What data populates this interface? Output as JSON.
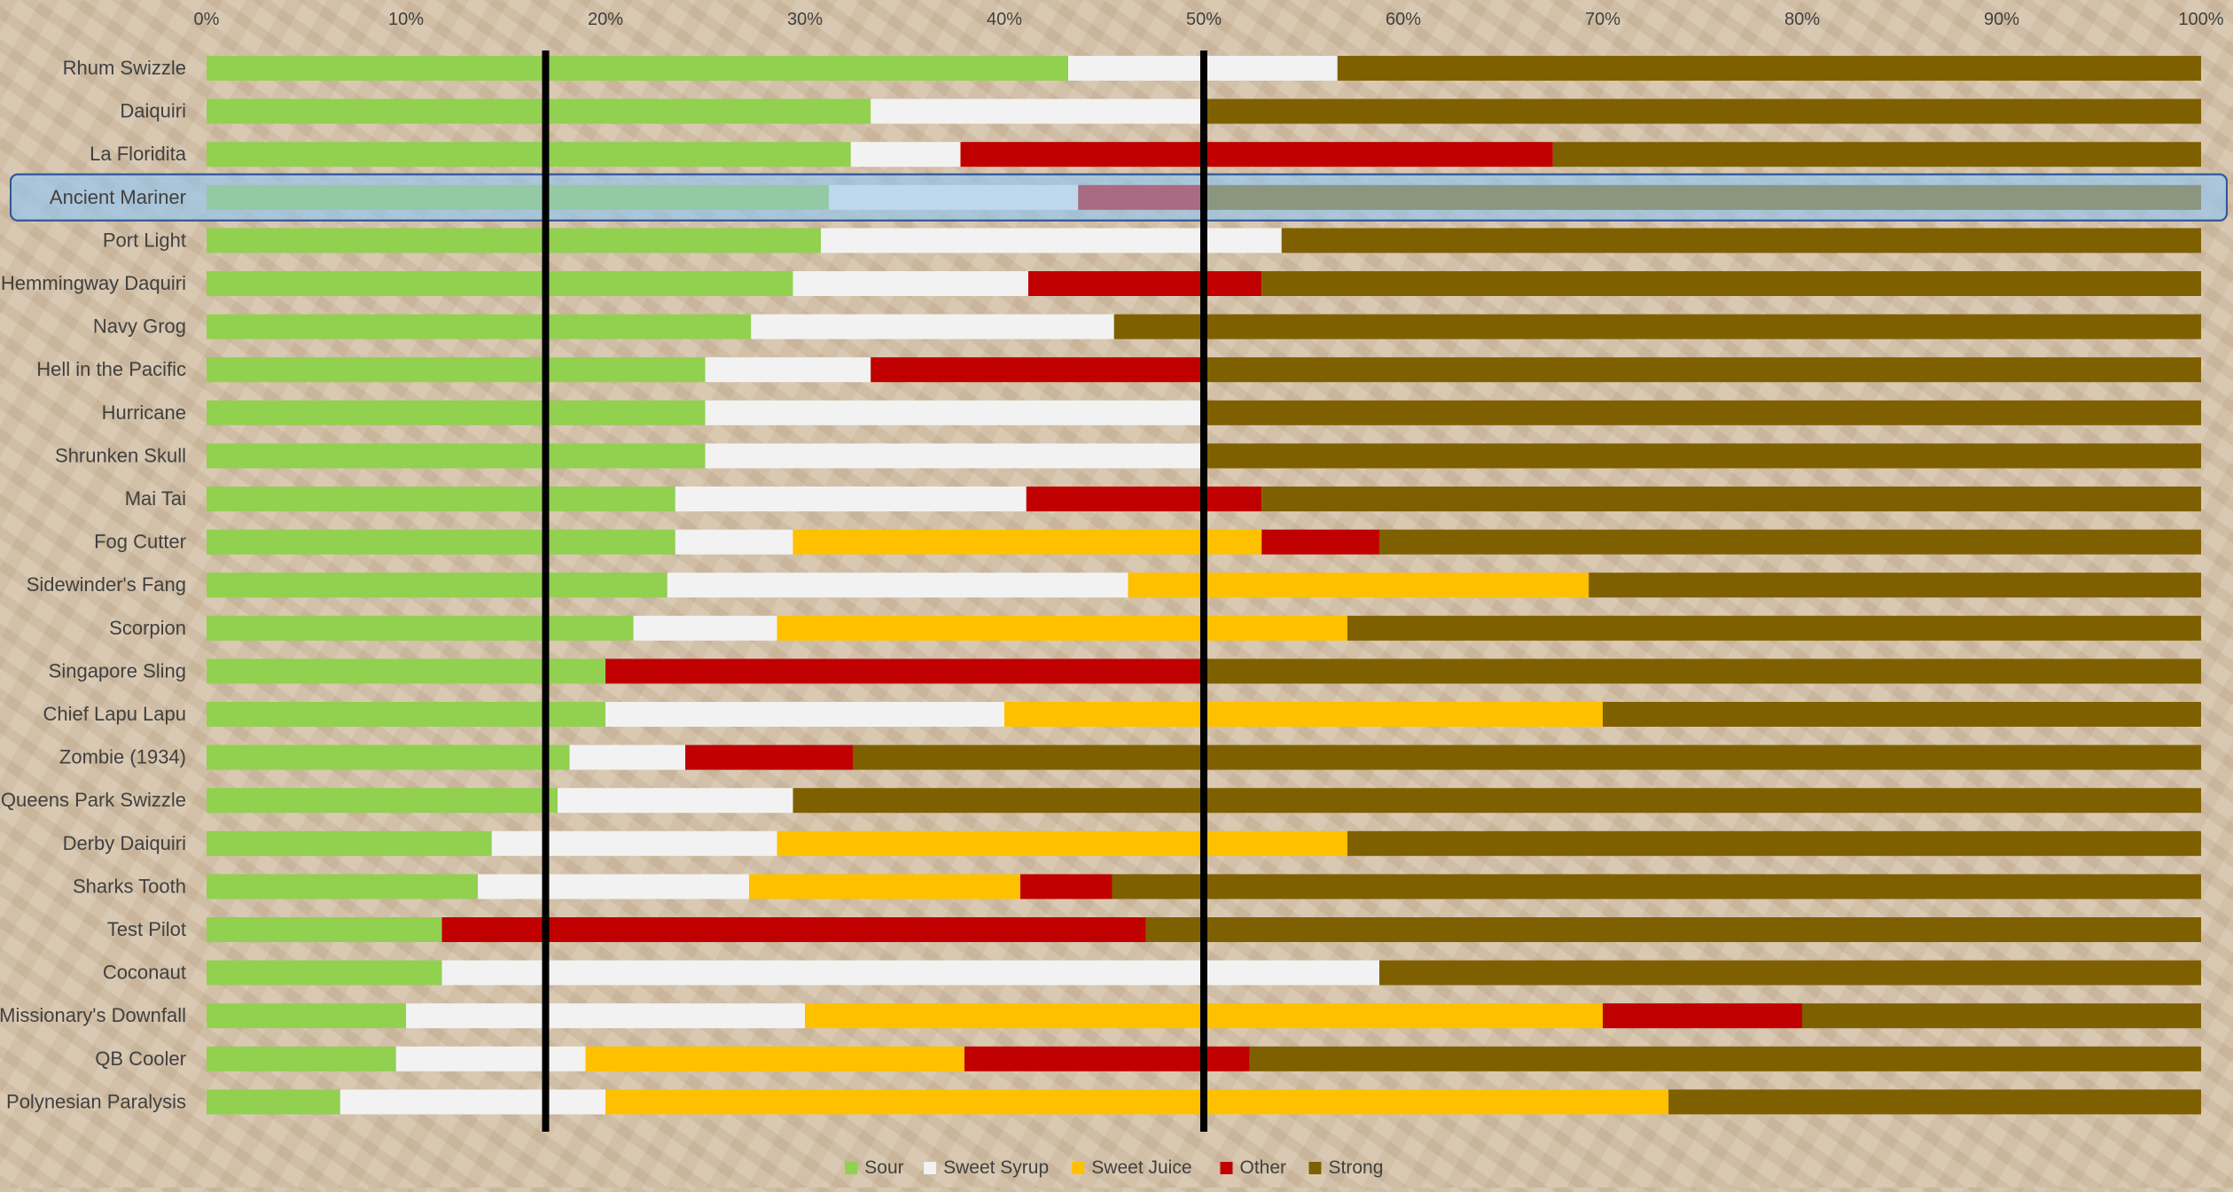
{
  "chart_data": {
    "type": "bar",
    "stacked": "percent",
    "orientation": "horizontal",
    "title": "",
    "xlabel": "",
    "ylabel": "",
    "xlim": [
      0,
      1
    ],
    "x_ticks": [
      "0%",
      "10%",
      "20%",
      "30%",
      "40%",
      "50%",
      "60%",
      "70%",
      "80%",
      "90%",
      "100%"
    ],
    "grid": false,
    "legend": "bottom",
    "highlighted_category": "Ancient Mariner",
    "reference_lines": [
      0.17,
      0.5
    ],
    "categories": [
      "Rhum Swizzle",
      "Daiquiri",
      "La Floridita",
      "Ancient Mariner",
      "Port Light",
      "Hemmingway Daquiri",
      "Navy Grog",
      "Hell in the Pacific",
      "Hurricane",
      "Shrunken Skull",
      "Mai Tai",
      "Fog Cutter",
      "Sidewinder's Fang",
      "Scorpion",
      "Singapore Sling",
      "Chief Lapu Lapu",
      "Zombie (1934)",
      "Queens Park Swizzle",
      "Derby Daiquiri",
      "Sharks Tooth",
      "Test Pilot",
      "Coconaut",
      "Missionary's Downfall",
      "QB Cooler",
      "Polynesian Paralysis"
    ],
    "series": [
      {
        "name": "Sour",
        "color": "#92d050",
        "values": [
          0.432,
          0.333,
          0.323,
          0.312,
          0.308,
          0.294,
          0.273,
          0.25,
          0.25,
          0.25,
          0.235,
          0.235,
          0.231,
          0.214,
          0.2,
          0.2,
          0.182,
          0.176,
          0.143,
          0.136,
          0.118,
          0.118,
          0.1,
          0.095,
          0.067
        ]
      },
      {
        "name": "Sweet Syrup",
        "color": "#f2f2f2",
        "values": [
          0.135,
          0.167,
          0.055,
          0.125,
          0.231,
          0.118,
          0.182,
          0.083,
          0.25,
          0.25,
          0.176,
          0.059,
          0.231,
          0.072,
          0.0,
          0.2,
          0.058,
          0.118,
          0.143,
          0.136,
          0.0,
          0.47,
          0.2,
          0.095,
          0.133
        ]
      },
      {
        "name": "Sweet Juice",
        "color": "#ffc000",
        "values": [
          0,
          0,
          0,
          0,
          0,
          0,
          0,
          0,
          0,
          0,
          0,
          0.235,
          0.231,
          0.286,
          0,
          0.3,
          0,
          0,
          0.286,
          0.136,
          0,
          0,
          0.4,
          0.19,
          0.533
        ]
      },
      {
        "name": "Other",
        "color": "#c00000",
        "values": [
          0,
          0,
          0.297,
          0.063,
          0,
          0.117,
          0,
          0.167,
          0,
          0,
          0.118,
          0.059,
          0,
          0,
          0.3,
          0,
          0.084,
          0,
          0,
          0.046,
          0.353,
          0,
          0.1,
          0.143,
          0
        ]
      },
      {
        "name": "Strong",
        "color": "#7f6000",
        "values": [
          0.433,
          0.5,
          0.325,
          0.5,
          0.461,
          0.471,
          0.545,
          0.5,
          0.5,
          0.5,
          0.471,
          0.412,
          0.307,
          0.428,
          0.5,
          0.3,
          0.676,
          0.706,
          0.428,
          0.546,
          0.529,
          0.412,
          0.2,
          0.477,
          0.267
        ]
      }
    ]
  }
}
